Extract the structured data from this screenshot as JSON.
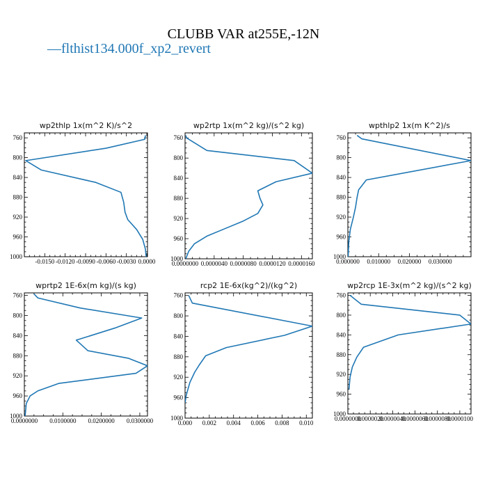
{
  "figure": {
    "title": "CLUBB VAR at255E,-12N",
    "legend": {
      "label": "flthist134.000f_xp2_revert",
      "symbol": "—",
      "color": "#1f77b4"
    }
  },
  "chart_data": [
    {
      "type": "line",
      "title": "wp2thlp   1x(m^2 K)/s^2",
      "xlim": [
        -0.018,
        0.0001
      ],
      "ylim": [
        1000,
        750
      ],
      "x_ticks": [
        "-0.0150",
        "-0.0120",
        "-0.0090",
        "-0.0060",
        "-0.0030",
        "0.0000"
      ],
      "x_tick_values": [
        -0.015,
        -0.012,
        -0.009,
        -0.006,
        -0.003,
        0.0
      ],
      "y_ticks": [
        "760",
        "800",
        "840",
        "880",
        "920",
        "960",
        "1000"
      ],
      "y_tick_values": [
        760,
        800,
        840,
        880,
        920,
        960,
        1000
      ],
      "series": [
        {
          "color": "#1f77b4",
          "x": [
            -0.0002,
            -0.0003,
            -0.006,
            -0.0178,
            -0.0155,
            -0.0075,
            -0.0038,
            -0.0034,
            -0.0032,
            -0.0028,
            -0.0015,
            -0.0006,
            -0.0002,
            -0.0001
          ],
          "y": [
            755,
            763,
            781,
            806,
            825,
            850,
            870,
            890,
            910,
            925,
            945,
            965,
            985,
            1000
          ]
        }
      ]
    },
    {
      "type": "line",
      "title": "wp2rtp   1x(m^2 kg)/(s^2 kg)",
      "xlim": [
        0,
        1.75e-05
      ],
      "ylim": [
        1000,
        750
      ],
      "x_ticks": [
        "0.0000000",
        "0.0000040",
        "0.0000080",
        "0.0000120",
        "0.0000160"
      ],
      "x_tick_values": [
        0,
        4e-06,
        8e-06,
        1.2e-05,
        1.6e-05
      ],
      "y_ticks": [
        "760",
        "800",
        "840",
        "880",
        "920",
        "960",
        "1000"
      ],
      "y_tick_values": [
        760,
        800,
        840,
        880,
        920,
        960,
        1000
      ],
      "series": [
        {
          "color": "#1f77b4",
          "x": [
            1e-07,
            2e-07,
            3e-06,
            1.5e-05,
            1.75e-05,
            1.25e-05,
            1e-05,
            1.03e-05,
            1.07e-05,
            1e-05,
            8e-06,
            5.5e-06,
            3e-06,
            1.3e-06,
            5e-07,
            1e-07
          ],
          "y": [
            755,
            760,
            785,
            805,
            830,
            847,
            865,
            880,
            893,
            910,
            925,
            940,
            955,
            970,
            985,
            1000
          ]
        }
      ]
    },
    {
      "type": "line",
      "title": "wpthlp2   1x(m K^2)/s",
      "xlim": [
        0,
        0.04
      ],
      "ylim": [
        1000,
        750
      ],
      "x_ticks": [
        "0.000000",
        "0.010000",
        "0.020000",
        "0.030000"
      ],
      "x_tick_values": [
        0,
        0.01,
        0.02,
        0.03
      ],
      "y_ticks": [
        "760",
        "800",
        "840",
        "880",
        "920",
        "960",
        "1000"
      ],
      "y_tick_values": [
        760,
        800,
        840,
        880,
        920,
        960,
        1000
      ],
      "series": [
        {
          "color": "#1f77b4",
          "x": [
            0.003,
            0.0045,
            0.04,
            0.006,
            0.0035,
            0.003,
            0.0025,
            0.0018,
            0.0008,
            0.0003,
            0.0001
          ],
          "y": [
            755,
            762,
            806,
            845,
            865,
            880,
            900,
            920,
            945,
            970,
            1000
          ]
        }
      ]
    },
    {
      "type": "line",
      "title": "wprtp2   1E-6x(m kg)/(s kg)",
      "xlim": [
        0,
        0.032
      ],
      "ylim": [
        1000,
        755
      ],
      "x_ticks": [
        "0.0000000",
        "0.0100000",
        "0.0200000",
        "0.0300000"
      ],
      "x_tick_values": [
        0,
        0.01,
        0.02,
        0.03
      ],
      "y_ticks": [
        "760",
        "800",
        "840",
        "880",
        "920",
        "960",
        "1000"
      ],
      "y_tick_values": [
        760,
        800,
        840,
        880,
        920,
        960,
        1000
      ],
      "series": [
        {
          "color": "#1f77b4",
          "x": [
            0.0025,
            0.0035,
            0.0145,
            0.0305,
            0.0235,
            0.0135,
            0.0165,
            0.027,
            0.032,
            0.029,
            0.009,
            0.0035,
            0.0015,
            0.0005,
            0.0002
          ],
          "y": [
            757,
            765,
            785,
            805,
            825,
            849,
            870,
            885,
            900,
            915,
            935,
            950,
            960,
            975,
            1000
          ]
        }
      ]
    },
    {
      "type": "line",
      "title": "rcp2   1E-6x(kg^2)/(kg^2)",
      "xlim": [
        0,
        0.0105
      ],
      "ylim": [
        1000,
        755
      ],
      "x_ticks": [
        "0.000",
        "0.002",
        "0.004",
        "0.006",
        "0.008",
        "0.010"
      ],
      "x_tick_values": [
        0,
        0.002,
        0.004,
        0.006,
        0.008,
        0.01
      ],
      "y_ticks": [
        "760",
        "800",
        "840",
        "880",
        "920",
        "960",
        "1000"
      ],
      "y_tick_values": [
        760,
        800,
        840,
        880,
        920,
        960,
        1000
      ],
      "series": [
        {
          "color": "#1f77b4",
          "x": [
            0.0003,
            0.0006,
            0.0105,
            0.0082,
            0.0034,
            0.0017,
            0.0012,
            0.0008,
            0.0004,
            0.0001,
            0.0
          ],
          "y": [
            760,
            775,
            820,
            838,
            862,
            878,
            895,
            910,
            930,
            955,
            970
          ]
        }
      ]
    },
    {
      "type": "line",
      "title": "wp2rcp   1E-3x(m^2 kg)/(s^2 kg)",
      "xlim": [
        0,
        1.1e-05
      ],
      "ylim": [
        1000,
        755
      ],
      "x_ticks": [
        "0.0000000",
        "0.0000020",
        "0.0000040",
        "0.0000060",
        "0.0000080",
        "0.0000100"
      ],
      "x_tick_values": [
        0,
        2e-06,
        4e-06,
        6e-06,
        8e-06,
        1e-05
      ],
      "y_ticks": [
        "760",
        "800",
        "840",
        "880",
        "920",
        "960",
        "1000"
      ],
      "y_tick_values": [
        760,
        800,
        840,
        880,
        920,
        960,
        1000
      ],
      "series": [
        {
          "color": "#1f77b4",
          "x": [
            2e-07,
            1.2e-06,
            1e-05,
            1.1e-05,
            4.5e-06,
            1.4e-06,
            8e-07,
            4e-07,
            2e-07,
            1e-07
          ],
          "y": [
            760,
            778,
            800,
            818,
            840,
            865,
            885,
            905,
            925,
            950
          ]
        }
      ]
    }
  ]
}
